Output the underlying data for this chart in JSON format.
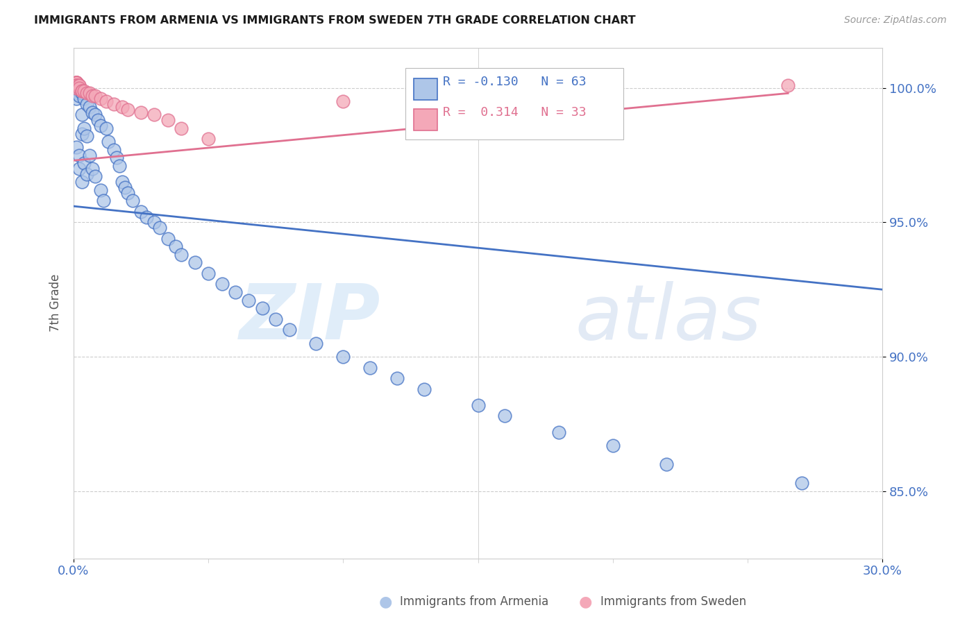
{
  "title": "IMMIGRANTS FROM ARMENIA VS IMMIGRANTS FROM SWEDEN 7TH GRADE CORRELATION CHART",
  "source": "Source: ZipAtlas.com",
  "ylabel": "7th Grade",
  "yticks": [
    0.85,
    0.9,
    0.95,
    1.0
  ],
  "ytick_labels": [
    "85.0%",
    "90.0%",
    "95.0%",
    "100.0%"
  ],
  "xlim": [
    0.0,
    0.3
  ],
  "ylim": [
    0.825,
    1.015
  ],
  "armenia_R": -0.13,
  "armenia_N": 63,
  "sweden_R": 0.314,
  "sweden_N": 33,
  "armenia_color": "#aec6e8",
  "sweden_color": "#f4a8b8",
  "armenia_line_color": "#4472c4",
  "sweden_line_color": "#e07090",
  "watermark_zip": "ZIP",
  "watermark_atlas": "atlas",
  "armenia_line_x": [
    0.0,
    0.3
  ],
  "armenia_line_y": [
    0.956,
    0.925
  ],
  "sweden_line_x": [
    0.0,
    0.265
  ],
  "sweden_line_y": [
    0.973,
    0.998
  ],
  "arm_x": [
    0.001,
    0.001,
    0.001,
    0.001,
    0.002,
    0.002,
    0.002,
    0.002,
    0.003,
    0.003,
    0.003,
    0.003,
    0.004,
    0.004,
    0.004,
    0.005,
    0.005,
    0.005,
    0.006,
    0.006,
    0.007,
    0.007,
    0.008,
    0.008,
    0.009,
    0.01,
    0.01,
    0.011,
    0.012,
    0.013,
    0.015,
    0.016,
    0.017,
    0.018,
    0.019,
    0.02,
    0.022,
    0.025,
    0.027,
    0.03,
    0.032,
    0.035,
    0.038,
    0.04,
    0.045,
    0.05,
    0.055,
    0.06,
    0.065,
    0.07,
    0.075,
    0.08,
    0.09,
    0.1,
    0.11,
    0.12,
    0.13,
    0.15,
    0.16,
    0.18,
    0.2,
    0.22,
    0.27
  ],
  "arm_y": [
    0.999,
    0.998,
    0.996,
    0.978,
    0.999,
    0.997,
    0.975,
    0.97,
    0.998,
    0.99,
    0.983,
    0.965,
    0.996,
    0.985,
    0.972,
    0.994,
    0.982,
    0.968,
    0.993,
    0.975,
    0.991,
    0.97,
    0.99,
    0.967,
    0.988,
    0.986,
    0.962,
    0.958,
    0.985,
    0.98,
    0.977,
    0.974,
    0.971,
    0.965,
    0.963,
    0.961,
    0.958,
    0.954,
    0.952,
    0.95,
    0.948,
    0.944,
    0.941,
    0.938,
    0.935,
    0.931,
    0.927,
    0.924,
    0.921,
    0.918,
    0.914,
    0.91,
    0.905,
    0.9,
    0.896,
    0.892,
    0.888,
    0.882,
    0.878,
    0.872,
    0.867,
    0.86,
    0.853
  ],
  "swe_x": [
    0.001,
    0.001,
    0.001,
    0.001,
    0.001,
    0.001,
    0.001,
    0.001,
    0.001,
    0.001,
    0.002,
    0.002,
    0.002,
    0.003,
    0.003,
    0.004,
    0.005,
    0.006,
    0.007,
    0.008,
    0.01,
    0.012,
    0.015,
    0.018,
    0.02,
    0.025,
    0.03,
    0.035,
    0.04,
    0.05,
    0.1,
    0.15,
    0.265
  ],
  "swe_y": [
    1.002,
    1.002,
    1.002,
    1.002,
    1.002,
    1.002,
    1.002,
    1.001,
    1.001,
    1.0,
    1.001,
    1.001,
    1.0,
    0.999,
    0.999,
    0.999,
    0.998,
    0.998,
    0.997,
    0.997,
    0.996,
    0.995,
    0.994,
    0.993,
    0.992,
    0.991,
    0.99,
    0.988,
    0.985,
    0.981,
    0.995,
    0.999,
    1.001
  ]
}
